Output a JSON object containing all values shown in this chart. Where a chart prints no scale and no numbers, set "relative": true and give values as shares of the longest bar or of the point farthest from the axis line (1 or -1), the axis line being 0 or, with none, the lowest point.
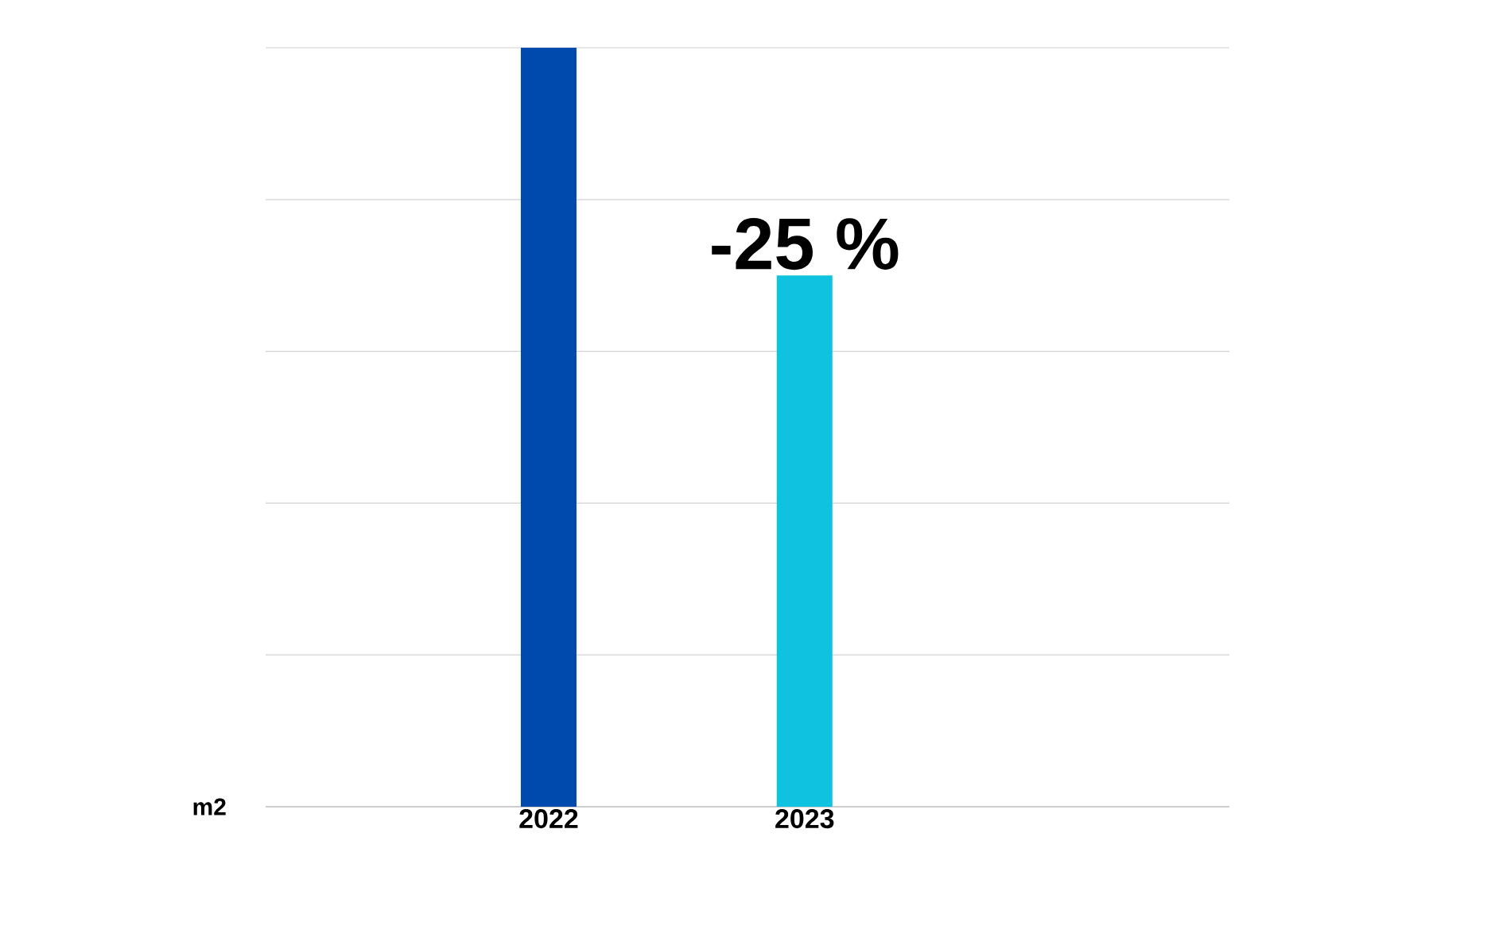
{
  "chart_data": {
    "type": "bar",
    "relative": true,
    "categories": [
      "2022",
      "2023"
    ],
    "values": [
      1,
      0.7
    ],
    "colors": [
      "#004aad",
      "#0ec2e0"
    ],
    "grid": "y",
    "annotations": [
      "m2",
      "-25 %"
    ]
  }
}
